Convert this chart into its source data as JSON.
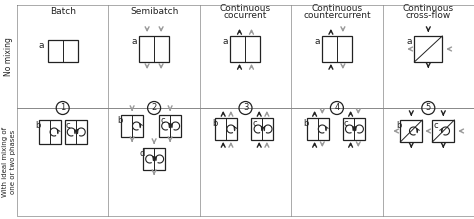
{
  "col_headers": [
    "Batch",
    "Semibatch",
    "Continuous\ncocurrent",
    "Continuous\ncountercurrent",
    "Continuous\ncross-flow"
  ],
  "row_header_top": "No mixing",
  "row_header_bot": "With ideal mixing of\none or two phases",
  "circle_numbers": [
    "1",
    "2",
    "3",
    "4",
    "5"
  ],
  "bg_color": "#ffffff",
  "dark": "#222222",
  "light": "#999999",
  "line": "#888888",
  "fig_width": 4.74,
  "fig_height": 2.19,
  "dpi": 100
}
